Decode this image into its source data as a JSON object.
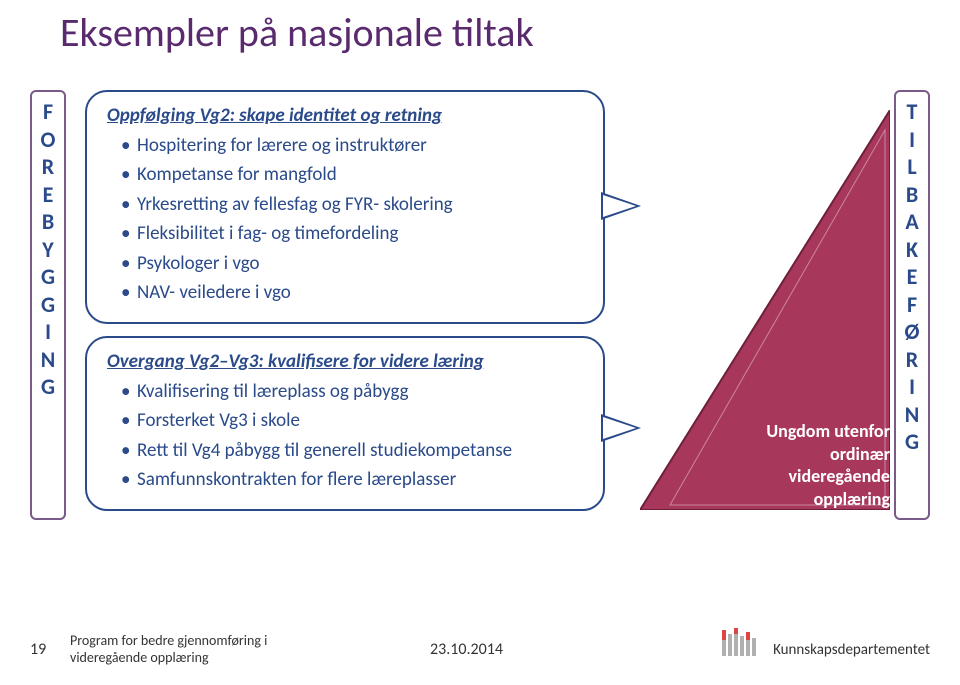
{
  "title": "Eksempler på nasjonale tiltak",
  "left_vertical": [
    "F",
    "O",
    "R",
    "E",
    "B",
    "Y",
    "G",
    "G",
    "I",
    "N",
    "G"
  ],
  "right_vertical": [
    "T",
    "I",
    "L",
    "B",
    "A",
    "K",
    "E",
    "F",
    "Ø",
    "R",
    "I",
    "N",
    "G"
  ],
  "callout1": {
    "heading": "Oppfølging Vg2: skape identitet og retning",
    "items": [
      "Hospitering for lærere og instruktører",
      "Kompetanse for mangfold",
      "Yrkesretting av fellesfag og FYR- skolering",
      "Fleksibilitet i fag- og timefordeling",
      "Psykologer i vgo",
      "NAV- veiledere i vgo"
    ]
  },
  "callout2": {
    "heading": "Overgang Vg2–Vg3: kvalifisere  for videre læring",
    "items": [
      "Kvalifisering til læreplass og påbygg",
      "Forsterket Vg3 i skole",
      "Rett til Vg4 påbygg til generell studiekompetanse",
      "Samfunnskontrakten for flere læreplasser"
    ]
  },
  "arrow": {
    "fill": "#a8375c",
    "stroke": "#6e1f3a",
    "label": "Ungdom utenfor ordinær videregående opplæring"
  },
  "footer": {
    "page": "19",
    "program_line1": "Program for bedre gjennomføring i",
    "program_line2": "videregående opplæring",
    "date": "23.10.2014",
    "dept": "Kunnskapsdepartementet"
  },
  "colors": {
    "title": "#5a2a6e",
    "border_box": "#7a5a8a",
    "text_blue": "#2a4a8a"
  }
}
